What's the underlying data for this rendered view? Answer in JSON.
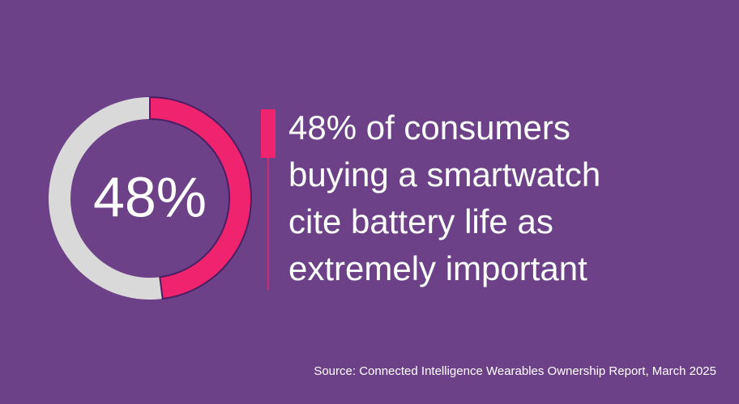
{
  "chart_data": {
    "type": "donut",
    "values": [
      48,
      52
    ],
    "value_labels": [
      "48%",
      null
    ],
    "colors": [
      "#f0246e",
      "#d9d9d9"
    ],
    "statement": [
      "48% of consumers",
      "buying a smartwatch",
      "cite battery life as",
      "extremely important"
    ],
    "source": "Source: Connected Intelligence Wearables Ownership Report, March 2025"
  }
}
